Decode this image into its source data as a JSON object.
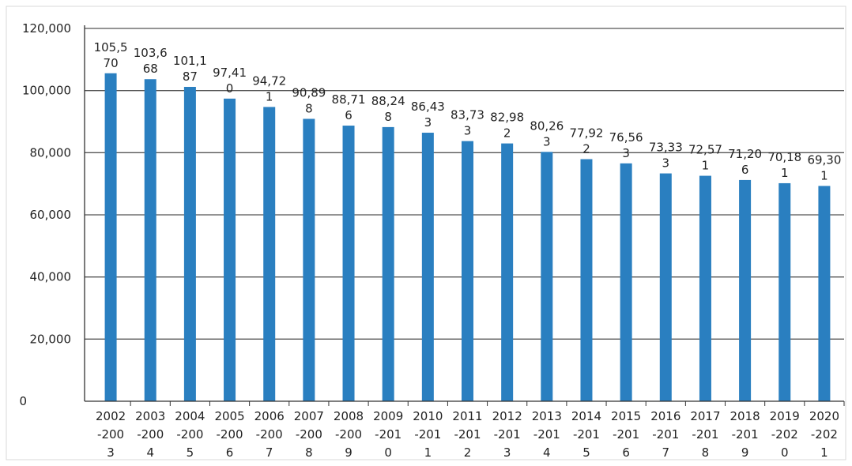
{
  "chart_data": {
    "type": "bar",
    "title": "",
    "xlabel": "",
    "ylabel": "",
    "ylim": [
      0,
      120000
    ],
    "yticks": [
      "0",
      "20,000",
      "40,000",
      "60,000",
      "80,000",
      "100,000",
      "120,000"
    ],
    "grid": true,
    "categories": [
      [
        "2002",
        "-200",
        "3"
      ],
      [
        "2003",
        "-200",
        "4"
      ],
      [
        "2004",
        "-200",
        "5"
      ],
      [
        "2005",
        "-200",
        "6"
      ],
      [
        "2006",
        "-200",
        "7"
      ],
      [
        "2007",
        "-200",
        "8"
      ],
      [
        "2008",
        "-200",
        "9"
      ],
      [
        "2009",
        "-201",
        "0"
      ],
      [
        "2010",
        "-201",
        "1"
      ],
      [
        "2011",
        "-201",
        "2"
      ],
      [
        "2012",
        "-201",
        "3"
      ],
      [
        "2013",
        "-201",
        "4"
      ],
      [
        "2014",
        "-201",
        "5"
      ],
      [
        "2015",
        "-201",
        "6"
      ],
      [
        "2016",
        "-201",
        "7"
      ],
      [
        "2017",
        "-201",
        "8"
      ],
      [
        "2018",
        "-201",
        "9"
      ],
      [
        "2019",
        "-202",
        "0"
      ],
      [
        "2020",
        "-202",
        "1"
      ]
    ],
    "values": [
      105570,
      103668,
      101187,
      97410,
      94721,
      90898,
      88716,
      88248,
      86433,
      83733,
      82982,
      80263,
      77922,
      76563,
      73333,
      72571,
      71206,
      70181,
      69301
    ],
    "value_labels": [
      [
        "105,5",
        "70"
      ],
      [
        "103,6",
        "68"
      ],
      [
        "101,1",
        "87"
      ],
      [
        "97,41",
        "0"
      ],
      [
        "94,72",
        "1"
      ],
      [
        "90,89",
        "8"
      ],
      [
        "88,71",
        "6"
      ],
      [
        "88,24",
        "8"
      ],
      [
        "86,43",
        "3"
      ],
      [
        "83,73",
        "3"
      ],
      [
        "82,98",
        "2"
      ],
      [
        "80,26",
        "3"
      ],
      [
        "77,92",
        "2"
      ],
      [
        "76,56",
        "3"
      ],
      [
        "73,33",
        "3"
      ],
      [
        "72,57",
        "1"
      ],
      [
        "71,20",
        "6"
      ],
      [
        "70,18",
        "1"
      ],
      [
        "69,30",
        "1"
      ]
    ],
    "colors": {
      "bar": "#2a7fc0",
      "grid": "#555555",
      "axis": "#333333",
      "frame": "#d8d8d8"
    }
  }
}
